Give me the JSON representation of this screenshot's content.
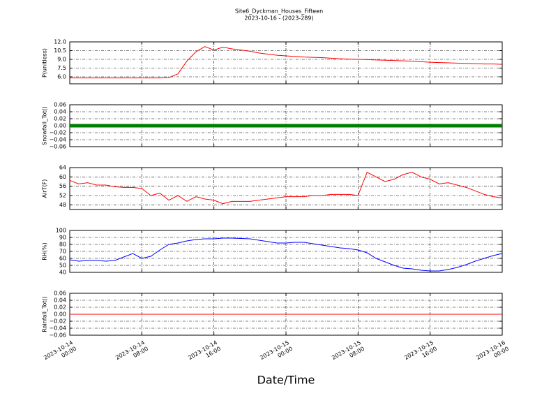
{
  "title": "Site6_Dyckman_Houses_Fifteen",
  "subtitle": "2023-10-16 - (2023-289)",
  "xlabel": "Date/Time",
  "xlim": [
    "2023-10-14 00:00",
    "2023-10-16 00:00"
  ],
  "xticks": [
    {
      "value": "2023-10-14 00:00",
      "label": "2023-10-14\n00:00"
    },
    {
      "value": "2023-10-14 08:00",
      "label": "2023-10-14\n08:00"
    },
    {
      "value": "2023-10-14 16:00",
      "label": "2023-10-14\n16:00"
    },
    {
      "value": "2023-10-15 00:00",
      "label": "2023-10-15\n00:00"
    },
    {
      "value": "2023-10-15 08:00",
      "label": "2023-10-15\n08:00"
    },
    {
      "value": "2023-10-15 16:00",
      "label": "2023-10-15\n16:00"
    },
    {
      "value": "2023-10-16 00:00",
      "label": "2023-10-16\n00:00"
    }
  ],
  "x": [
    "2023-10-14 00:00",
    "2023-10-14 01:00",
    "2023-10-14 02:00",
    "2023-10-14 03:00",
    "2023-10-14 04:00",
    "2023-10-14 05:00",
    "2023-10-14 06:00",
    "2023-10-14 07:00",
    "2023-10-14 08:00",
    "2023-10-14 09:00",
    "2023-10-14 10:00",
    "2023-10-14 11:00",
    "2023-10-14 12:00",
    "2023-10-14 13:00",
    "2023-10-14 14:00",
    "2023-10-14 15:00",
    "2023-10-14 16:00",
    "2023-10-14 17:00",
    "2023-10-14 18:00",
    "2023-10-14 19:00",
    "2023-10-14 20:00",
    "2023-10-14 21:00",
    "2023-10-14 22:00",
    "2023-10-14 23:00",
    "2023-10-15 00:00",
    "2023-10-15 01:00",
    "2023-10-15 02:00",
    "2023-10-15 03:00",
    "2023-10-15 04:00",
    "2023-10-15 05:00",
    "2023-10-15 06:00",
    "2023-10-15 07:00",
    "2023-10-15 08:00",
    "2023-10-15 09:00",
    "2023-10-15 10:00",
    "2023-10-15 11:00",
    "2023-10-15 12:00",
    "2023-10-15 13:00",
    "2023-10-15 14:00",
    "2023-10-15 15:00",
    "2023-10-15 16:00",
    "2023-10-15 17:00",
    "2023-10-15 18:00",
    "2023-10-15 19:00",
    "2023-10-15 20:00",
    "2023-10-15 21:00",
    "2023-10-15 22:00",
    "2023-10-15 23:00",
    "2023-10-16 00:00"
  ],
  "chart_data": [
    {
      "type": "line",
      "ylabel": "P(unitless)",
      "ylim": [
        4.8,
        12
      ],
      "grid": true,
      "yticks": [
        {
          "value": 6,
          "label": "6.0"
        },
        7.5,
        {
          "value": 9,
          "label": "9.0"
        },
        10.5,
        {
          "value": 12,
          "label": "12.0"
        }
      ],
      "series": [
        {
          "color": "#ff0000",
          "values": [
            5.8,
            5.8,
            5.8,
            5.8,
            5.8,
            5.8,
            5.8,
            5.8,
            5.8,
            5.8,
            5.8,
            5.85,
            6.5,
            8.7,
            10.3,
            11.2,
            10.6,
            11.1,
            10.8,
            10.6,
            10.4,
            10.1,
            9.9,
            9.7,
            9.6,
            9.5,
            9.4,
            9.35,
            9.3,
            9.2,
            9.1,
            9.05,
            9.0,
            8.95,
            8.9,
            8.85,
            8.8,
            8.75,
            8.7,
            8.6,
            8.5,
            8.45,
            8.4,
            8.35,
            8.3,
            8.25,
            8.2,
            8.2,
            8.15
          ]
        }
      ]
    },
    {
      "type": "line",
      "ylabel": "Snowfall_Tot()",
      "ylim": [
        -0.06,
        0.06
      ],
      "grid": true,
      "yticks": [
        {
          "value": -0.06,
          "label": "−0.06"
        },
        {
          "value": -0.04,
          "label": "−0.04"
        },
        {
          "value": -0.02,
          "label": "−0.02"
        },
        {
          "value": 0,
          "label": "0.00"
        },
        0.02,
        0.04,
        0.06
      ],
      "series": [
        {
          "color": "#007f00",
          "markers": true,
          "values": [
            0,
            0,
            0,
            0,
            0,
            0,
            0,
            0,
            0,
            0,
            0,
            0,
            0,
            0,
            0,
            0,
            0,
            0,
            0,
            0,
            0,
            0,
            0,
            0,
            0,
            0,
            0,
            0,
            0,
            0,
            0,
            0,
            0,
            0,
            0,
            0,
            0,
            0,
            0,
            0,
            0,
            0,
            0,
            0,
            0,
            0,
            0,
            0,
            0
          ]
        }
      ]
    },
    {
      "type": "line",
      "ylabel": "AirT(F)",
      "ylim": [
        46,
        64
      ],
      "grid": true,
      "yticks": [
        48,
        52,
        56,
        60,
        64
      ],
      "series": [
        {
          "color": "#ff0000",
          "values": [
            58.5,
            57,
            57.5,
            56.5,
            56.5,
            55.8,
            55.5,
            55.5,
            55,
            52,
            53,
            50,
            52,
            49.5,
            51.5,
            50.5,
            50,
            48.5,
            49.5,
            49.5,
            49.5,
            50,
            50.5,
            51,
            51.5,
            51.5,
            51.5,
            52,
            52,
            52.5,
            52.5,
            52.5,
            52,
            62,
            60,
            58,
            59,
            61,
            62,
            60,
            59,
            57,
            57.5,
            56.5,
            55.5,
            54,
            52.5,
            51.5,
            51
          ]
        }
      ]
    },
    {
      "type": "line",
      "ylabel": "RH(%)",
      "ylim": [
        40,
        100
      ],
      "grid": true,
      "yticks": [
        40,
        50,
        60,
        70,
        80,
        90,
        100
      ],
      "series": [
        {
          "color": "#0000ff",
          "values": [
            58,
            56,
            57,
            57,
            56,
            57,
            62,
            67,
            60,
            63,
            72,
            80,
            82,
            85,
            87,
            88,
            88,
            89,
            89,
            88.5,
            88,
            86,
            84,
            82,
            82,
            83,
            83,
            81,
            79,
            77,
            75,
            74,
            72,
            68,
            60,
            55,
            50,
            46,
            45,
            43,
            42,
            42,
            44,
            47,
            51,
            56,
            60,
            64,
            67
          ]
        }
      ]
    },
    {
      "type": "line",
      "ylabel": "Rainfall_Tot()",
      "ylim": [
        -0.06,
        0.06
      ],
      "grid": true,
      "yticks": [
        {
          "value": -0.06,
          "label": "−0.06"
        },
        {
          "value": -0.04,
          "label": "−0.04"
        },
        {
          "value": -0.02,
          "label": "−0.02"
        },
        {
          "value": 0,
          "label": "0.00"
        },
        0.02,
        0.04,
        0.06
      ],
      "series": [
        {
          "color": "#ff0000",
          "values": [
            0,
            0,
            0,
            0,
            0,
            0,
            0,
            0,
            0,
            0,
            0,
            0,
            0,
            0,
            0,
            0,
            0,
            0,
            0,
            0,
            0,
            0,
            0,
            0,
            0,
            0,
            0,
            0,
            0,
            0,
            0,
            0,
            0,
            0,
            0,
            0,
            0,
            0,
            0,
            0,
            0,
            0,
            0,
            0,
            0,
            0,
            0,
            0,
            0
          ]
        }
      ]
    }
  ]
}
